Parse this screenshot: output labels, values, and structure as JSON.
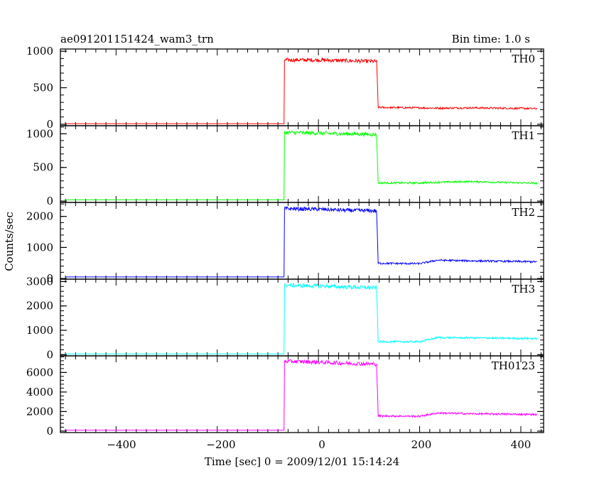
{
  "header": {
    "title": "ae091201151424_wam3_trn",
    "bin_time": "Bin time: 1.0 s"
  },
  "axes": {
    "ylabel": "Counts/sec",
    "xlabel": "Time [sec] 0 = 2009/12/01 15:14:24",
    "x_ticks": [
      "−400",
      "−200",
      "0",
      "200",
      "400"
    ]
  },
  "chart_data": {
    "type": "line",
    "title": "ae091201151424_wam3_trn",
    "xlabel": "Time [sec] 0 = 2009/12/01 15:14:24",
    "ylabel": "Counts/sec",
    "xlim": [
      -510,
      445
    ],
    "grid": false,
    "panels": [
      {
        "name": "TH0",
        "color": "#ff0000",
        "ylim": [
          -20,
          1030
        ],
        "y_ticks": [
          0,
          500,
          1000
        ],
        "y_tick_labels": [
          "0",
          "500",
          "1000"
        ],
        "x": [
          -500,
          -68,
          -67,
          0,
          50,
          115,
          118,
          200,
          235,
          300,
          432
        ],
        "values": [
          8,
          8,
          880,
          880,
          870,
          860,
          230,
          225,
          220,
          225,
          215
        ]
      },
      {
        "name": "TH1",
        "color": "#00ff00",
        "ylim": [
          -20,
          1120
        ],
        "y_ticks": [
          0,
          500,
          1000
        ],
        "y_tick_labels": [
          "0",
          "500",
          "1000"
        ],
        "x": [
          -500,
          -68,
          -67,
          0,
          50,
          115,
          118,
          200,
          235,
          300,
          432
        ],
        "values": [
          20,
          20,
          1020,
          1010,
          1000,
          990,
          270,
          270,
          280,
          290,
          265
        ]
      },
      {
        "name": "TH2",
        "color": "#0000ff",
        "ylim": [
          -20,
          2450
        ],
        "y_ticks": [
          0,
          1000,
          2000
        ],
        "y_tick_labels": [
          "0",
          "1000",
          "2000"
        ],
        "x": [
          -500,
          -68,
          -67,
          0,
          50,
          115,
          118,
          200,
          235,
          300,
          432
        ],
        "values": [
          50,
          50,
          2250,
          2230,
          2200,
          2180,
          490,
          480,
          590,
          570,
          540
        ]
      },
      {
        "name": "TH3",
        "color": "#00ffff",
        "ylim": [
          -50,
          3100
        ],
        "y_ticks": [
          0,
          1000,
          2000,
          3000
        ],
        "y_tick_labels": [
          "0",
          "1000",
          "2000",
          "3000"
        ],
        "x": [
          -500,
          -68,
          -67,
          0,
          50,
          115,
          118,
          200,
          235,
          300,
          432
        ],
        "values": [
          30,
          30,
          2850,
          2820,
          2780,
          2750,
          530,
          530,
          700,
          690,
          660
        ]
      },
      {
        "name": "TH0123",
        "color": "#ff00ff",
        "ylim": [
          -150,
          7700
        ],
        "y_ticks": [
          0,
          2000,
          4000,
          6000
        ],
        "y_tick_labels": [
          "0",
          "2000",
          "4000",
          "6000"
        ],
        "x": [
          -500,
          -68,
          -67,
          0,
          50,
          115,
          118,
          200,
          235,
          300,
          432
        ],
        "values": [
          100,
          100,
          7150,
          7050,
          6950,
          6850,
          1550,
          1520,
          1850,
          1780,
          1700
        ]
      }
    ]
  }
}
